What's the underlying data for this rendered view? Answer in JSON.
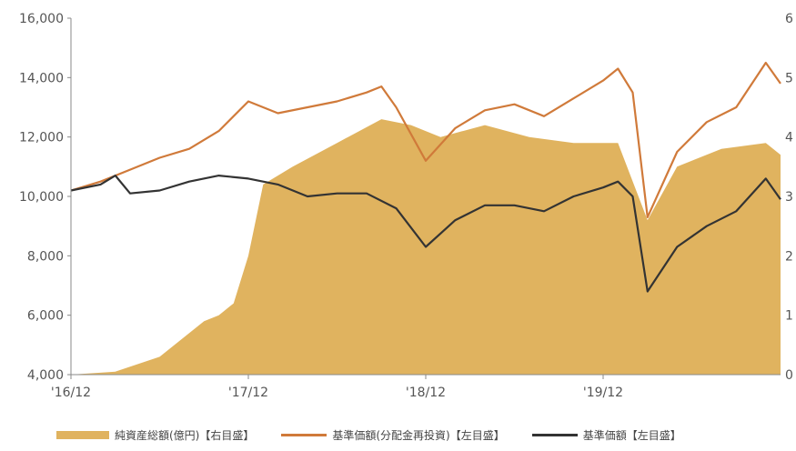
{
  "chart_data": {
    "type": "line",
    "title": "",
    "x": {
      "categories": [
        "'16/12",
        "'17/12",
        "'18/12",
        "'19/12"
      ],
      "range": [
        "2016-12",
        "2020-12"
      ]
    },
    "y_left": {
      "ticks": [
        4000,
        6000,
        8000,
        10000,
        12000,
        14000,
        16000
      ],
      "tick_labels": [
        "4,000",
        "6,000",
        "8,000",
        "10,000",
        "12,000",
        "14,000",
        "16,000"
      ],
      "ylim": [
        4000,
        16000
      ]
    },
    "y_right": {
      "ticks": [
        0,
        1,
        2,
        3,
        4,
        5,
        6
      ],
      "tick_labels": [
        "0",
        "1",
        "2",
        "3",
        "4",
        "5",
        "6"
      ],
      "ylim": [
        0,
        6
      ]
    },
    "grid": false,
    "legend_position": "bottom",
    "series": [
      {
        "name": "純資産総額(億円)【右目盛】",
        "type": "area",
        "axis": "right",
        "color": "#e0b35f",
        "points": [
          [
            "2016-12",
            0.0
          ],
          [
            "2017-03",
            0.05
          ],
          [
            "2017-06",
            0.3
          ],
          [
            "2017-09",
            0.9
          ],
          [
            "2017-10",
            1.0
          ],
          [
            "2017-11",
            1.2
          ],
          [
            "2017-12",
            2.0
          ],
          [
            "2018-01",
            3.2
          ],
          [
            "2018-03",
            3.5
          ],
          [
            "2018-06",
            3.9
          ],
          [
            "2018-09",
            4.3
          ],
          [
            "2018-11",
            4.2
          ],
          [
            "2019-01",
            4.0
          ],
          [
            "2019-04",
            4.2
          ],
          [
            "2019-07",
            4.0
          ],
          [
            "2019-10",
            3.9
          ],
          [
            "2020-01",
            3.9
          ],
          [
            "2020-03",
            2.6
          ],
          [
            "2020-05",
            3.5
          ],
          [
            "2020-08",
            3.8
          ],
          [
            "2020-11",
            3.9
          ],
          [
            "2020-12",
            3.7
          ]
        ]
      },
      {
        "name": "基準価額(分配金再投資)【左目盛】",
        "type": "line",
        "axis": "left",
        "color": "#d07a3a",
        "points": [
          [
            "2016-12",
            10200
          ],
          [
            "2017-02",
            10500
          ],
          [
            "2017-04",
            10900
          ],
          [
            "2017-06",
            11300
          ],
          [
            "2017-08",
            11600
          ],
          [
            "2017-10",
            12200
          ],
          [
            "2017-12",
            13200
          ],
          [
            "2018-02",
            12800
          ],
          [
            "2018-04",
            13000
          ],
          [
            "2018-06",
            13200
          ],
          [
            "2018-08",
            13500
          ],
          [
            "2018-09",
            13700
          ],
          [
            "2018-10",
            13000
          ],
          [
            "2018-12",
            11200
          ],
          [
            "2019-02",
            12300
          ],
          [
            "2019-04",
            12900
          ],
          [
            "2019-06",
            13100
          ],
          [
            "2019-08",
            12700
          ],
          [
            "2019-10",
            13300
          ],
          [
            "2019-12",
            13900
          ],
          [
            "2020-01",
            14300
          ],
          [
            "2020-02",
            13500
          ],
          [
            "2020-03",
            9300
          ],
          [
            "2020-05",
            11500
          ],
          [
            "2020-07",
            12500
          ],
          [
            "2020-09",
            13000
          ],
          [
            "2020-11",
            14500
          ],
          [
            "2020-12",
            13800
          ]
        ]
      },
      {
        "name": "基準価額【左目盛】",
        "type": "line",
        "axis": "left",
        "color": "#333333",
        "points": [
          [
            "2016-12",
            10200
          ],
          [
            "2017-02",
            10400
          ],
          [
            "2017-03",
            10700
          ],
          [
            "2017-04",
            10100
          ],
          [
            "2017-06",
            10200
          ],
          [
            "2017-08",
            10500
          ],
          [
            "2017-10",
            10700
          ],
          [
            "2017-12",
            10600
          ],
          [
            "2018-02",
            10400
          ],
          [
            "2018-04",
            10000
          ],
          [
            "2018-06",
            10100
          ],
          [
            "2018-08",
            10100
          ],
          [
            "2018-10",
            9600
          ],
          [
            "2018-12",
            8300
          ],
          [
            "2019-02",
            9200
          ],
          [
            "2019-04",
            9700
          ],
          [
            "2019-06",
            9700
          ],
          [
            "2019-08",
            9500
          ],
          [
            "2019-10",
            10000
          ],
          [
            "2019-12",
            10300
          ],
          [
            "2020-01",
            10500
          ],
          [
            "2020-02",
            10000
          ],
          [
            "2020-03",
            6800
          ],
          [
            "2020-05",
            8300
          ],
          [
            "2020-07",
            9000
          ],
          [
            "2020-09",
            9500
          ],
          [
            "2020-11",
            10600
          ],
          [
            "2020-12",
            9900
          ]
        ]
      }
    ]
  }
}
